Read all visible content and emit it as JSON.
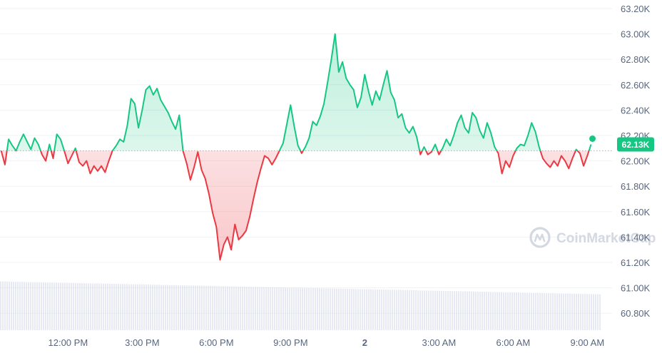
{
  "chart_data": {
    "type": "line",
    "title": "",
    "xlabel": "",
    "ylabel": "",
    "ylim": [
      60700,
      63250
    ],
    "y_ticks": [
      "63.20K",
      "63.00K",
      "62.80K",
      "62.60K",
      "62.40K",
      "62.20K",
      "62.00K",
      "61.80K",
      "61.60K",
      "61.40K",
      "61.20K",
      "61.00K",
      "60.80K"
    ],
    "y_tick_values": [
      63200,
      63000,
      62800,
      62600,
      62400,
      62200,
      62000,
      61800,
      61600,
      61400,
      61200,
      61000,
      60800
    ],
    "x_ticks": [
      "12:00 PM",
      "3:00 PM",
      "6:00 PM",
      "9:00 PM",
      "2",
      "3:00 AM",
      "6:00 AM",
      "9:00 AM"
    ],
    "x_tick_hours": [
      12,
      15,
      18,
      21,
      24,
      27,
      30,
      33
    ],
    "x_range_hours": [
      9.25,
      34.0
    ],
    "reference_price": 62080,
    "current_price": 62130,
    "current_price_label": "62.13K",
    "grid": true,
    "colors": {
      "up": "#16c784",
      "down": "#ea3943",
      "grid": "#eff2f5",
      "volume": "#cfd6e4"
    },
    "series": [
      {
        "values": [
          [
            9.3,
            62080
          ],
          [
            9.45,
            61970
          ],
          [
            9.6,
            62170
          ],
          [
            9.75,
            62120
          ],
          [
            9.9,
            62080
          ],
          [
            10.05,
            62150
          ],
          [
            10.2,
            62210
          ],
          [
            10.35,
            62150
          ],
          [
            10.5,
            62090
          ],
          [
            10.65,
            62180
          ],
          [
            10.8,
            62130
          ],
          [
            10.95,
            62050
          ],
          [
            11.1,
            62000
          ],
          [
            11.25,
            62130
          ],
          [
            11.4,
            62020
          ],
          [
            11.55,
            62210
          ],
          [
            11.7,
            62170
          ],
          [
            11.85,
            62080
          ],
          [
            12.0,
            61980
          ],
          [
            12.15,
            62040
          ],
          [
            12.3,
            62100
          ],
          [
            12.45,
            61990
          ],
          [
            12.6,
            61960
          ],
          [
            12.75,
            62000
          ],
          [
            12.9,
            61900
          ],
          [
            13.05,
            61960
          ],
          [
            13.2,
            61920
          ],
          [
            13.35,
            61960
          ],
          [
            13.5,
            61910
          ],
          [
            13.65,
            62000
          ],
          [
            13.8,
            62080
          ],
          [
            13.95,
            62120
          ],
          [
            14.1,
            62170
          ],
          [
            14.25,
            62150
          ],
          [
            14.4,
            62280
          ],
          [
            14.55,
            62490
          ],
          [
            14.7,
            62450
          ],
          [
            14.85,
            62260
          ],
          [
            15.0,
            62400
          ],
          [
            15.15,
            62560
          ],
          [
            15.3,
            62590
          ],
          [
            15.45,
            62520
          ],
          [
            15.6,
            62570
          ],
          [
            15.75,
            62480
          ],
          [
            15.9,
            62430
          ],
          [
            16.05,
            62380
          ],
          [
            16.2,
            62310
          ],
          [
            16.35,
            62250
          ],
          [
            16.5,
            62360
          ],
          [
            16.65,
            62080
          ],
          [
            16.8,
            61980
          ],
          [
            16.95,
            61850
          ],
          [
            17.1,
            61950
          ],
          [
            17.25,
            62070
          ],
          [
            17.4,
            61930
          ],
          [
            17.55,
            61860
          ],
          [
            17.7,
            61740
          ],
          [
            17.85,
            61590
          ],
          [
            18.0,
            61480
          ],
          [
            18.15,
            61220
          ],
          [
            18.3,
            61340
          ],
          [
            18.45,
            61400
          ],
          [
            18.6,
            61300
          ],
          [
            18.75,
            61500
          ],
          [
            18.9,
            61380
          ],
          [
            19.05,
            61410
          ],
          [
            19.2,
            61450
          ],
          [
            19.35,
            61560
          ],
          [
            19.5,
            61700
          ],
          [
            19.65,
            61830
          ],
          [
            19.8,
            61940
          ],
          [
            19.95,
            62040
          ],
          [
            20.1,
            62020
          ],
          [
            20.25,
            61970
          ],
          [
            20.4,
            62020
          ],
          [
            20.55,
            62080
          ],
          [
            20.7,
            62140
          ],
          [
            20.85,
            62290
          ],
          [
            21.0,
            62440
          ],
          [
            21.15,
            62270
          ],
          [
            21.3,
            62120
          ],
          [
            21.45,
            62060
          ],
          [
            21.6,
            62110
          ],
          [
            21.75,
            62180
          ],
          [
            21.9,
            62310
          ],
          [
            22.05,
            62280
          ],
          [
            22.2,
            62350
          ],
          [
            22.35,
            62450
          ],
          [
            22.5,
            62620
          ],
          [
            22.65,
            62800
          ],
          [
            22.8,
            63000
          ],
          [
            22.95,
            62700
          ],
          [
            23.1,
            62780
          ],
          [
            23.25,
            62650
          ],
          [
            23.4,
            62600
          ],
          [
            23.55,
            62560
          ],
          [
            23.7,
            62420
          ],
          [
            23.85,
            62500
          ],
          [
            24.0,
            62680
          ],
          [
            24.15,
            62550
          ],
          [
            24.3,
            62440
          ],
          [
            24.45,
            62550
          ],
          [
            24.6,
            62480
          ],
          [
            24.75,
            62600
          ],
          [
            24.9,
            62710
          ],
          [
            25.05,
            62540
          ],
          [
            25.2,
            62480
          ],
          [
            25.35,
            62340
          ],
          [
            25.5,
            62370
          ],
          [
            25.65,
            62260
          ],
          [
            25.8,
            62220
          ],
          [
            25.95,
            62270
          ],
          [
            26.1,
            62190
          ],
          [
            26.25,
            62050
          ],
          [
            26.4,
            62110
          ],
          [
            26.55,
            62050
          ],
          [
            26.7,
            62070
          ],
          [
            26.85,
            62130
          ],
          [
            27.0,
            62050
          ],
          [
            27.15,
            62100
          ],
          [
            27.3,
            62170
          ],
          [
            27.45,
            62120
          ],
          [
            27.6,
            62200
          ],
          [
            27.75,
            62300
          ],
          [
            27.9,
            62360
          ],
          [
            28.05,
            62260
          ],
          [
            28.2,
            62220
          ],
          [
            28.35,
            62380
          ],
          [
            28.5,
            62340
          ],
          [
            28.65,
            62240
          ],
          [
            28.8,
            62180
          ],
          [
            28.95,
            62300
          ],
          [
            29.1,
            62220
          ],
          [
            29.25,
            62110
          ],
          [
            29.4,
            62060
          ],
          [
            29.55,
            61900
          ],
          [
            29.7,
            62000
          ],
          [
            29.85,
            61950
          ],
          [
            30.0,
            62040
          ],
          [
            30.15,
            62100
          ],
          [
            30.3,
            62130
          ],
          [
            30.45,
            62120
          ],
          [
            30.6,
            62200
          ],
          [
            30.75,
            62300
          ],
          [
            30.9,
            62230
          ],
          [
            31.05,
            62110
          ],
          [
            31.2,
            62020
          ],
          [
            31.35,
            61980
          ],
          [
            31.5,
            61950
          ],
          [
            31.65,
            62000
          ],
          [
            31.8,
            61960
          ],
          [
            31.95,
            62040
          ],
          [
            32.1,
            62000
          ],
          [
            32.25,
            61940
          ],
          [
            32.4,
            62020
          ],
          [
            32.55,
            62090
          ],
          [
            32.7,
            62060
          ],
          [
            32.85,
            61960
          ],
          [
            33.0,
            62040
          ],
          [
            33.15,
            62130
          ]
        ]
      }
    ],
    "volume": [
      0.07,
      0.95
    ]
  },
  "watermark": {
    "text": "CoinMarketCap"
  }
}
